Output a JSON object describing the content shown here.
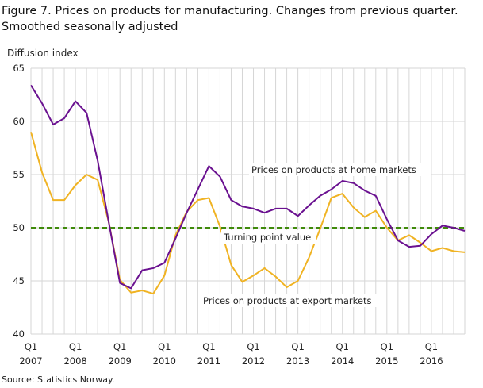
{
  "chart_data": {
    "type": "line",
    "title": "Figure 7. Prices on products for manufacturing. Changes from previous quarter. Smoothed seasonally adjusted",
    "title_lines": [
      "Figure 7. Prices on products for manufacturing. Changes from previous quarter.",
      "Smoothed seasonally adjusted"
    ],
    "ylabel": "Diffusion  index",
    "xlabel": "",
    "ylim": [
      40,
      65
    ],
    "yticks": [
      40,
      45,
      50,
      55,
      60,
      65
    ],
    "grid": true,
    "xtick_labels": [
      {
        "q": "Q1",
        "year": "2007"
      },
      {
        "q": "Q1",
        "year": "2008"
      },
      {
        "q": "Q1",
        "year": "2009"
      },
      {
        "q": "Q1",
        "year": "2010"
      },
      {
        "q": "Q1",
        "year": "2011"
      },
      {
        "q": "Q1",
        "year": "2012"
      },
      {
        "q": "Q1",
        "year": "2013"
      },
      {
        "q": "Q1",
        "year": "2014"
      },
      {
        "q": "Q1",
        "year": "2015"
      },
      {
        "q": "Q1",
        "year": "2016"
      }
    ],
    "x_range": [
      "2007Q1",
      "2016Q4"
    ],
    "series": [
      {
        "name": "Prices on products at home markets",
        "color": "#6a1190",
        "values": [
          63.4,
          61.7,
          59.7,
          60.3,
          61.9,
          60.8,
          56.3,
          50.5,
          44.8,
          44.3,
          46.0,
          46.2,
          46.7,
          49.0,
          51.4,
          53.6,
          55.8,
          54.8,
          52.6,
          52.0,
          51.8,
          51.4,
          51.8,
          51.8,
          51.1,
          52.1,
          53.0,
          53.6,
          54.4,
          54.2,
          53.5,
          53.0,
          50.8,
          48.8,
          48.2,
          48.3,
          49.4,
          50.2,
          50.0,
          49.7
        ]
      },
      {
        "name": "Prices on products at export markets",
        "color": "#f0b323",
        "values": [
          59.0,
          55.2,
          52.6,
          52.6,
          54.0,
          55.0,
          54.5,
          50.5,
          45.1,
          43.9,
          44.1,
          43.8,
          45.5,
          49.3,
          51.5,
          52.6,
          52.8,
          50.1,
          46.5,
          44.9,
          45.5,
          46.2,
          45.4,
          44.4,
          45.0,
          47.2,
          49.9,
          52.8,
          53.2,
          51.9,
          51.0,
          51.6,
          50.0,
          48.8,
          49.3,
          48.6,
          47.8,
          48.1,
          47.8,
          47.7
        ]
      }
    ],
    "reference_line": {
      "label": "Turning point value",
      "value": 50,
      "color": "#3f8a0a"
    }
  },
  "source": "Source: Statistics Norway."
}
